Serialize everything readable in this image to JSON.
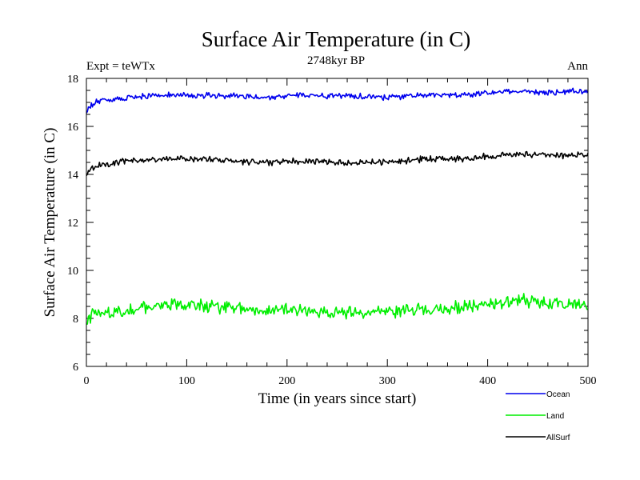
{
  "chart_data": {
    "type": "line",
    "title": "Surface Air Temperature (in C)",
    "subtitle": "2748kyr BP",
    "left_note": "Expt = teWTx",
    "right_note": "Ann",
    "xlabel": "Time (in years since start)",
    "ylabel": "Surface Air Temperature (in C)",
    "xlim": [
      0,
      500
    ],
    "ylim": [
      6,
      18
    ],
    "xticks": [
      0,
      100,
      200,
      300,
      400,
      500
    ],
    "yticks": [
      6,
      8,
      10,
      12,
      14,
      16,
      18
    ],
    "grid": false,
    "legend_position": "bottom-right",
    "series": [
      {
        "name": "Ocean",
        "color": "#0000ee",
        "start_value": 16.55,
        "noise": 0.09,
        "x": [
          0,
          5,
          10,
          20,
          40,
          60,
          80,
          100,
          120,
          150,
          175,
          200,
          225,
          250,
          275,
          300,
          325,
          350,
          375,
          400,
          420,
          440,
          460,
          480,
          500
        ],
        "values": [
          16.6,
          16.9,
          17.0,
          17.1,
          17.15,
          17.25,
          17.3,
          17.3,
          17.3,
          17.25,
          17.2,
          17.3,
          17.3,
          17.25,
          17.25,
          17.2,
          17.3,
          17.3,
          17.3,
          17.4,
          17.45,
          17.45,
          17.4,
          17.45,
          17.45
        ]
      },
      {
        "name": "Land",
        "color": "#00ee00",
        "start_value": 7.75,
        "noise": 0.2,
        "x": [
          0,
          5,
          10,
          20,
          40,
          60,
          80,
          100,
          120,
          150,
          175,
          200,
          225,
          250,
          275,
          300,
          325,
          350,
          375,
          400,
          420,
          440,
          460,
          480,
          500
        ],
        "values": [
          7.8,
          8.1,
          8.2,
          8.25,
          8.35,
          8.45,
          8.6,
          8.5,
          8.5,
          8.45,
          8.3,
          8.35,
          8.3,
          8.25,
          8.25,
          8.3,
          8.35,
          8.4,
          8.45,
          8.55,
          8.7,
          8.75,
          8.6,
          8.65,
          8.6
        ]
      },
      {
        "name": "AllSurf",
        "color": "#000000",
        "start_value": 13.95,
        "noise": 0.1,
        "x": [
          0,
          5,
          10,
          20,
          40,
          60,
          80,
          100,
          120,
          150,
          175,
          200,
          225,
          250,
          275,
          300,
          325,
          350,
          375,
          400,
          420,
          440,
          460,
          480,
          500
        ],
        "values": [
          14.0,
          14.25,
          14.35,
          14.45,
          14.55,
          14.6,
          14.65,
          14.65,
          14.65,
          14.55,
          14.5,
          14.55,
          14.55,
          14.5,
          14.5,
          14.5,
          14.6,
          14.65,
          14.65,
          14.75,
          14.8,
          14.85,
          14.8,
          14.8,
          14.8
        ]
      }
    ]
  }
}
